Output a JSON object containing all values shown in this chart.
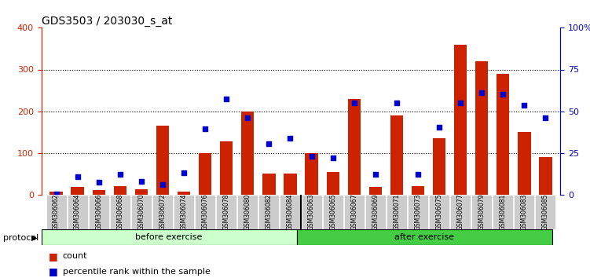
{
  "title": "GDS3503 / 203030_s_at",
  "samples": [
    "GSM306062",
    "GSM306064",
    "GSM306066",
    "GSM306068",
    "GSM306070",
    "GSM306072",
    "GSM306074",
    "GSM306076",
    "GSM306078",
    "GSM306080",
    "GSM306082",
    "GSM306084",
    "GSM306063",
    "GSM306065",
    "GSM306067",
    "GSM306069",
    "GSM306071",
    "GSM306073",
    "GSM306075",
    "GSM306077",
    "GSM306079",
    "GSM306081",
    "GSM306083",
    "GSM306085"
  ],
  "counts": [
    8,
    18,
    10,
    20,
    12,
    165,
    8,
    100,
    128,
    200,
    50,
    50,
    100,
    55,
    230,
    18,
    190,
    20,
    135,
    360,
    320,
    290,
    150,
    90
  ],
  "percentiles": [
    2,
    42,
    30,
    48,
    32,
    25,
    52,
    158,
    230,
    185,
    122,
    135,
    92,
    88,
    220,
    48,
    220,
    48,
    162,
    220,
    245,
    240,
    215,
    185
  ],
  "before_exercise_count": 12,
  "after_exercise_count": 12,
  "bar_color": "#CC2200",
  "scatter_color": "#0000CC",
  "before_bg": "#CCFFCC",
  "after_bg": "#44CC44",
  "protocol_label": "protocol",
  "before_label": "before exercise",
  "after_label": "after exercise",
  "legend_count": "count",
  "legend_pct": "percentile rank within the sample",
  "ylim_left": [
    0,
    400
  ],
  "ylim_right": [
    0,
    100
  ],
  "yticks_left": [
    0,
    100,
    200,
    300,
    400
  ],
  "yticks_right": [
    0,
    25,
    50,
    75,
    100
  ],
  "ytick_labels_right": [
    "0",
    "25",
    "50",
    "75",
    "100%"
  ],
  "grid_values": [
    100,
    200,
    300
  ],
  "title_fontsize": 10,
  "axis_color_left": "#CC2200",
  "axis_color_right": "#0000CC",
  "plot_bg_color": "#FFFFFF",
  "xtick_bg_color": "#CCCCCC"
}
